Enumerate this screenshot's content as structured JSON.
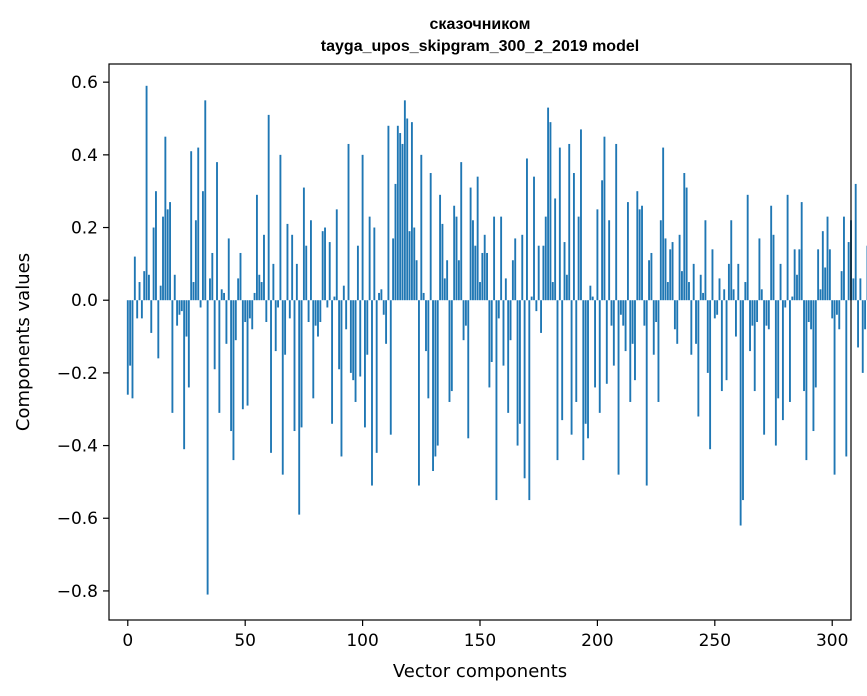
{
  "chart_data": {
    "type": "bar",
    "title": "сказочником",
    "subtitle": "tayga_upos_skipgram_300_2_2019 model",
    "xlabel": "Vector components",
    "ylabel": "Components values",
    "xlim": [
      -8,
      308
    ],
    "ylim": [
      -0.88,
      0.65
    ],
    "xticks": [
      0,
      50,
      100,
      150,
      200,
      250,
      300
    ],
    "yticks": [
      -0.8,
      -0.6,
      -0.4,
      -0.2,
      0.0,
      0.2,
      0.4,
      0.6
    ],
    "ytick_labels": [
      "−0.8",
      "−0.6",
      "−0.4",
      "−0.2",
      "0.0",
      "0.2",
      "0.4",
      "0.6"
    ],
    "xtick_labels": [
      "0",
      "50",
      "100",
      "150",
      "200",
      "250",
      "300"
    ],
    "bar_color": "#1f77b4",
    "values": [
      -0.26,
      -0.18,
      -0.27,
      0.12,
      -0.05,
      0.05,
      -0.05,
      0.08,
      0.59,
      0.07,
      -0.09,
      0.2,
      0.3,
      -0.16,
      0.04,
      0.23,
      0.45,
      0.25,
      0.27,
      -0.31,
      0.07,
      -0.07,
      -0.04,
      -0.03,
      -0.41,
      -0.1,
      -0.24,
      0.41,
      0.05,
      0.22,
      0.42,
      -0.02,
      0.3,
      0.55,
      -0.81,
      0.06,
      0.13,
      -0.19,
      0.38,
      -0.31,
      0.03,
      0.02,
      -0.12,
      0.17,
      -0.36,
      -0.44,
      -0.11,
      0.06,
      0.13,
      -0.3,
      -0.06,
      -0.29,
      -0.05,
      -0.08,
      0.02,
      0.29,
      0.07,
      0.05,
      0.18,
      -0.06,
      0.51,
      -0.42,
      0.1,
      -0.14,
      -0.02,
      0.4,
      -0.48,
      -0.15,
      0.21,
      -0.05,
      0.18,
      -0.36,
      0.1,
      -0.59,
      -0.35,
      0.31,
      0.15,
      -0.06,
      0.22,
      -0.27,
      -0.07,
      -0.1,
      -0.06,
      0.19,
      0.2,
      -0.02,
      0.16,
      -0.34,
      0.01,
      0.25,
      -0.19,
      -0.43,
      0.04,
      -0.08,
      0.43,
      -0.2,
      -0.22,
      -0.28,
      0.15,
      -0.21,
      0.4,
      -0.35,
      -0.15,
      0.23,
      -0.51,
      0.2,
      -0.42,
      0.02,
      0.03,
      -0.04,
      -0.12,
      0.48,
      -0.37,
      0.17,
      0.32,
      0.48,
      0.46,
      0.43,
      0.55,
      0.5,
      0.19,
      0.49,
      0.2,
      0.11,
      -0.51,
      0.4,
      0.02,
      -0.14,
      -0.27,
      0.35,
      -0.47,
      -0.43,
      -0.4,
      0.29,
      0.21,
      0.06,
      0.11,
      -0.28,
      -0.25,
      0.26,
      0.23,
      0.11,
      0.38,
      -0.11,
      -0.07,
      -0.38,
      0.31,
      0.22,
      0.15,
      0.34,
      0.05,
      0.13,
      0.18,
      0.13,
      -0.24,
      -0.17,
      0.23,
      -0.55,
      -0.05,
      0.23,
      -0.18,
      0.06,
      -0.31,
      -0.11,
      0.11,
      0.17,
      -0.4,
      -0.34,
      0.18,
      -0.49,
      0.39,
      -0.55,
      0.01,
      0.34,
      -0.03,
      0.15,
      -0.09,
      0.15,
      0.23,
      0.53,
      0.49,
      0.05,
      0.28,
      -0.44,
      0.42,
      -0.33,
      0.16,
      0.07,
      0.43,
      -0.37,
      0.35,
      -0.28,
      0.23,
      0.47,
      -0.44,
      -0.34,
      -0.38,
      0.04,
      0.01,
      -0.24,
      0.25,
      -0.31,
      0.33,
      0.45,
      -0.23,
      0.22,
      -0.07,
      -0.18,
      0.43,
      -0.48,
      -0.04,
      -0.07,
      -0.14,
      0.27,
      -0.28,
      -0.12,
      -0.22,
      0.3,
      0.25,
      0.26,
      -0.07,
      -0.51,
      0.11,
      0.13,
      -0.15,
      -0.06,
      -0.28,
      0.22,
      0.42,
      0.17,
      0.05,
      0.14,
      0.16,
      -0.08,
      -0.12,
      0.18,
      0.08,
      0.35,
      0.31,
      0.05,
      -0.15,
      0.1,
      -0.12,
      -0.32,
      0.07,
      0.02,
      0.22,
      -0.2,
      -0.41,
      0.14,
      -0.05,
      -0.04,
      0.06,
      -0.25,
      0.03,
      -0.22,
      0.1,
      0.22,
      0.03,
      -0.1,
      0.1,
      -0.62,
      -0.55,
      0.05,
      0.29,
      -0.14,
      -0.07,
      -0.25,
      -0.06,
      0.17,
      0.03,
      -0.37,
      -0.07,
      -0.08,
      0.26,
      0.18,
      -0.4,
      -0.27,
      0.1,
      -0.33,
      -0.02,
      0.29,
      -0.28,
      0.01,
      0.14,
      0.07,
      0.14,
      0.27,
      -0.25,
      -0.44,
      -0.06,
      -0.08,
      -0.36,
      -0.24,
      0.14,
      0.03,
      0.19,
      0.09,
      0.23,
      0.14,
      -0.05,
      -0.48,
      -0.04,
      -0.08,
      0.08,
      0.23,
      -0.43,
      0.16,
      0.22,
      0.06,
      0.32,
      -0.13,
      0.06,
      -0.2,
      -0.08,
      0.15,
      0.09,
      0.09
    ]
  }
}
